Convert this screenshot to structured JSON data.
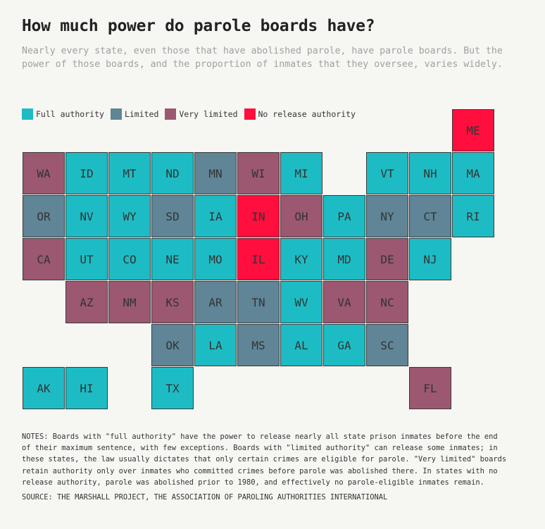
{
  "title": "How much power do parole boards have?",
  "subtitle": "Nearly every state, even those that have abolished parole, have parole boards. But the power of those boards, and the proportion of inmates that they oversee, varies widely.",
  "legend": [
    {
      "key": "full",
      "label": "Full authority",
      "color": "#1dbcc4"
    },
    {
      "key": "limited",
      "label": "Limited",
      "color": "#5f8596"
    },
    {
      "key": "very",
      "label": "Very limited",
      "color": "#9b5870"
    },
    {
      "key": "none",
      "label": "No release authority",
      "color": "#ff0e3e"
    }
  ],
  "states": [
    {
      "abbr": "ME",
      "row": 0,
      "col": 10,
      "cat": "none"
    },
    {
      "abbr": "WA",
      "row": 1,
      "col": 0,
      "cat": "very"
    },
    {
      "abbr": "ID",
      "row": 1,
      "col": 1,
      "cat": "full"
    },
    {
      "abbr": "MT",
      "row": 1,
      "col": 2,
      "cat": "full"
    },
    {
      "abbr": "ND",
      "row": 1,
      "col": 3,
      "cat": "full"
    },
    {
      "abbr": "MN",
      "row": 1,
      "col": 4,
      "cat": "limited"
    },
    {
      "abbr": "WI",
      "row": 1,
      "col": 5,
      "cat": "very"
    },
    {
      "abbr": "MI",
      "row": 1,
      "col": 6,
      "cat": "full"
    },
    {
      "abbr": "VT",
      "row": 1,
      "col": 8,
      "cat": "full"
    },
    {
      "abbr": "NH",
      "row": 1,
      "col": 9,
      "cat": "full"
    },
    {
      "abbr": "MA",
      "row": 1,
      "col": 10,
      "cat": "full"
    },
    {
      "abbr": "OR",
      "row": 2,
      "col": 0,
      "cat": "limited"
    },
    {
      "abbr": "NV",
      "row": 2,
      "col": 1,
      "cat": "full"
    },
    {
      "abbr": "WY",
      "row": 2,
      "col": 2,
      "cat": "full"
    },
    {
      "abbr": "SD",
      "row": 2,
      "col": 3,
      "cat": "limited"
    },
    {
      "abbr": "IA",
      "row": 2,
      "col": 4,
      "cat": "full"
    },
    {
      "abbr": "IN",
      "row": 2,
      "col": 5,
      "cat": "none"
    },
    {
      "abbr": "OH",
      "row": 2,
      "col": 6,
      "cat": "very"
    },
    {
      "abbr": "PA",
      "row": 2,
      "col": 7,
      "cat": "full"
    },
    {
      "abbr": "NY",
      "row": 2,
      "col": 8,
      "cat": "limited"
    },
    {
      "abbr": "CT",
      "row": 2,
      "col": 9,
      "cat": "limited"
    },
    {
      "abbr": "RI",
      "row": 2,
      "col": 10,
      "cat": "full"
    },
    {
      "abbr": "CA",
      "row": 3,
      "col": 0,
      "cat": "very"
    },
    {
      "abbr": "UT",
      "row": 3,
      "col": 1,
      "cat": "full"
    },
    {
      "abbr": "CO",
      "row": 3,
      "col": 2,
      "cat": "full"
    },
    {
      "abbr": "NE",
      "row": 3,
      "col": 3,
      "cat": "full"
    },
    {
      "abbr": "MO",
      "row": 3,
      "col": 4,
      "cat": "full"
    },
    {
      "abbr": "IL",
      "row": 3,
      "col": 5,
      "cat": "none"
    },
    {
      "abbr": "KY",
      "row": 3,
      "col": 6,
      "cat": "full"
    },
    {
      "abbr": "MD",
      "row": 3,
      "col": 7,
      "cat": "full"
    },
    {
      "abbr": "DE",
      "row": 3,
      "col": 8,
      "cat": "very"
    },
    {
      "abbr": "NJ",
      "row": 3,
      "col": 9,
      "cat": "full"
    },
    {
      "abbr": "AZ",
      "row": 4,
      "col": 1,
      "cat": "very"
    },
    {
      "abbr": "NM",
      "row": 4,
      "col": 2,
      "cat": "very"
    },
    {
      "abbr": "KS",
      "row": 4,
      "col": 3,
      "cat": "very"
    },
    {
      "abbr": "AR",
      "row": 4,
      "col": 4,
      "cat": "limited"
    },
    {
      "abbr": "TN",
      "row": 4,
      "col": 5,
      "cat": "limited"
    },
    {
      "abbr": "WV",
      "row": 4,
      "col": 6,
      "cat": "full"
    },
    {
      "abbr": "VA",
      "row": 4,
      "col": 7,
      "cat": "very"
    },
    {
      "abbr": "NC",
      "row": 4,
      "col": 8,
      "cat": "very"
    },
    {
      "abbr": "OK",
      "row": 5,
      "col": 3,
      "cat": "limited"
    },
    {
      "abbr": "LA",
      "row": 5,
      "col": 4,
      "cat": "full"
    },
    {
      "abbr": "MS",
      "row": 5,
      "col": 5,
      "cat": "limited"
    },
    {
      "abbr": "AL",
      "row": 5,
      "col": 6,
      "cat": "full"
    },
    {
      "abbr": "GA",
      "row": 5,
      "col": 7,
      "cat": "full"
    },
    {
      "abbr": "SC",
      "row": 5,
      "col": 8,
      "cat": "limited"
    },
    {
      "abbr": "AK",
      "row": 6,
      "col": 0,
      "cat": "full"
    },
    {
      "abbr": "HI",
      "row": 6,
      "col": 1,
      "cat": "full"
    },
    {
      "abbr": "TX",
      "row": 6,
      "col": 3,
      "cat": "full"
    },
    {
      "abbr": "FL",
      "row": 6,
      "col": 9,
      "cat": "very"
    }
  ],
  "notes": "NOTES: Boards with \"full authority\" have the power to release nearly all state prison inmates before the end of their maximum sentence, with few exceptions. Boards with \"limited authority\" can release some inmates; in these states, the law usually dictates that only certain crimes are eligible for parole. \"Very limited\" boards retain authority only over inmates who committed crimes before parole was abolished there. In states with no release authority, parole was abolished prior to 1980, and effectively no parole-eligible inmates remain.",
  "source": "SOURCE: THE MARSHALL PROJECT, THE ASSOCIATION OF PAROLING AUTHORITIES INTERNATIONAL"
}
